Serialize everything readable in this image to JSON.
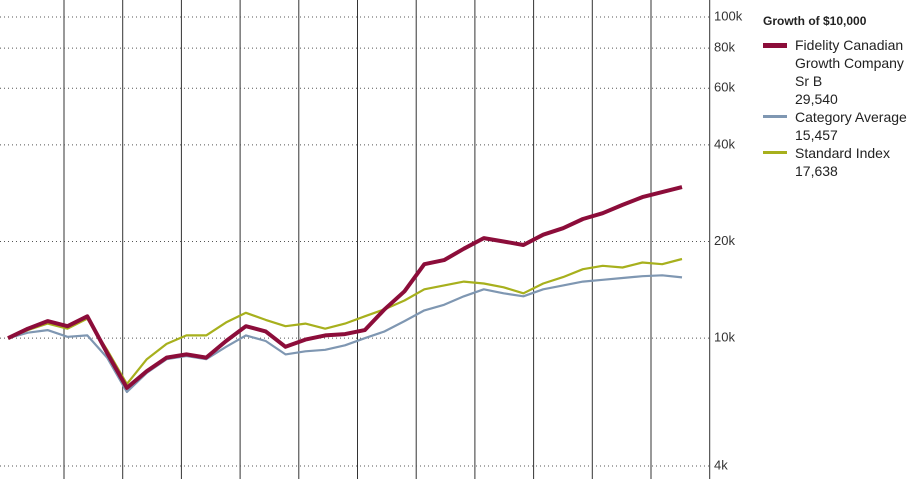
{
  "chart_data": {
    "type": "line",
    "legend_title": "Growth of  $10,000",
    "log_scale": true,
    "categories": [
      null,
      null,
      null,
      null,
      null,
      null,
      null,
      null,
      null,
      null,
      null,
      null,
      null,
      null,
      null,
      null,
      null,
      null,
      null,
      null,
      null,
      null,
      null,
      null,
      null,
      null,
      null,
      null,
      null,
      null,
      null,
      null,
      null,
      null,
      null
    ],
    "ylim": [
      4000,
      100000
    ],
    "yticks": [
      {
        "value": 4000,
        "label": "4k"
      },
      {
        "value": 10000,
        "label": "10k"
      },
      {
        "value": 20000,
        "label": "20k"
      },
      {
        "value": 40000,
        "label": "40k"
      },
      {
        "value": 60000,
        "label": "60k"
      },
      {
        "value": 80000,
        "label": "80k"
      },
      {
        "value": 100000,
        "label": "100k"
      }
    ],
    "series": [
      {
        "name": "Fidelity Canadian Growth Company Sr B",
        "legend_value": "29,540",
        "color": "#8c0d3a",
        "values": [
          10000,
          10700,
          11300,
          10900,
          11700,
          9000,
          7000,
          7900,
          8700,
          8900,
          8700,
          9800,
          10900,
          10500,
          9400,
          9900,
          10200,
          10300,
          10600,
          12300,
          14000,
          17000,
          17500,
          19000,
          20500,
          20000,
          19500,
          21000,
          22000,
          23500,
          24500,
          26000,
          27500,
          28500,
          29540
        ]
      },
      {
        "name": "Category Average",
        "legend_value": "15,457",
        "color": "#7f97b2",
        "values": [
          10000,
          10400,
          10600,
          10100,
          10200,
          8700,
          6800,
          7800,
          8600,
          8800,
          8600,
          9400,
          10200,
          9800,
          8900,
          9100,
          9200,
          9500,
          10000,
          10500,
          11300,
          12200,
          12700,
          13500,
          14200,
          13800,
          13500,
          14200,
          14600,
          15000,
          15200,
          15400,
          15600,
          15700,
          15457
        ]
      },
      {
        "name": "Standard Index",
        "legend_value": "17,638",
        "color": "#a7b01d",
        "values": [
          10000,
          10600,
          11100,
          10700,
          11500,
          9200,
          7200,
          8600,
          9600,
          10200,
          10200,
          11200,
          12000,
          11400,
          10900,
          11100,
          10700,
          11100,
          11700,
          12300,
          13100,
          14200,
          14600,
          15000,
          14800,
          14400,
          13800,
          14800,
          15500,
          16400,
          16800,
          16600,
          17200,
          17000,
          17638
        ]
      }
    ]
  }
}
